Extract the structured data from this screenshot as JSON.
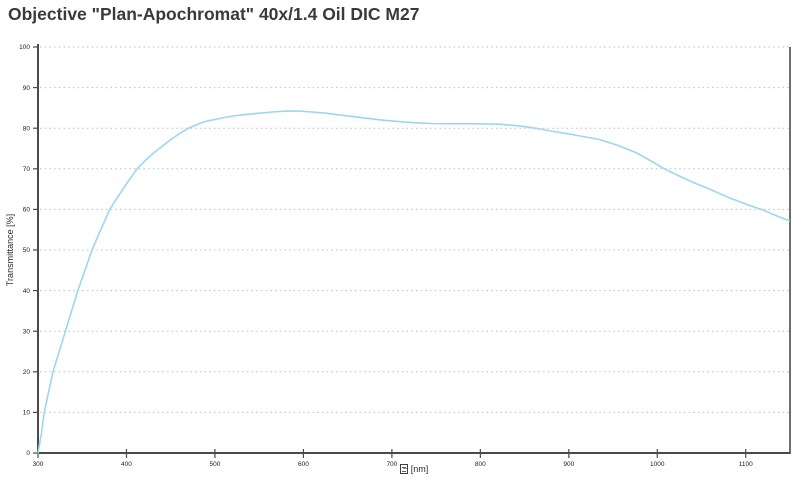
{
  "title": "Objective \"Plan-Apochromat\" 40x/1.4 Oil DIC M27",
  "yaxis": {
    "label": "Transmittance [%]"
  },
  "xaxis": {
    "unit_label": "[nm]",
    "symbol_icon": "missing-glyph-box"
  },
  "colors": {
    "curve": "#9ed5f0",
    "axis": "#4a4a4a",
    "plot_border": "#6e6e6e",
    "gridline": "#bdbdbd",
    "tick_label": "#1c1c1c",
    "title_text": "#3a3a3a"
  },
  "chart_data": {
    "type": "line",
    "title": "Objective \"Plan-Apochromat\" 40x/1.4 Oil DIC M27",
    "xlabel": "□ [nm]",
    "ylabel": "Transmittance [%]",
    "xlim": [
      300,
      1150
    ],
    "ylim": [
      0,
      100
    ],
    "xticks": [
      300,
      400,
      500,
      600,
      700,
      800,
      900,
      1000,
      1100
    ],
    "yticks": [
      0,
      10,
      20,
      30,
      40,
      50,
      60,
      70,
      80,
      90,
      100
    ],
    "grid": "horizontal-dotted",
    "legend": "none",
    "series": [
      {
        "name": "transmittance",
        "x": [
          300,
          304,
          307,
          312,
          317,
          324,
          331,
          338,
          345,
          353,
          361,
          371,
          381,
          390,
          400,
          412,
          422,
          430,
          440,
          450,
          460,
          470,
          480,
          490,
          505,
          520,
          535,
          550,
          565,
          580,
          595,
          610,
          625,
          640,
          655,
          670,
          685,
          700,
          715,
          730,
          745,
          760,
          775,
          790,
          805,
          820,
          835,
          850,
          865,
          880,
          900,
          920,
          935,
          955,
          975,
          990,
          1008,
          1025,
          1040,
          1060,
          1080,
          1100,
          1120,
          1135,
          1149
        ],
        "y": [
          0,
          5,
          10,
          15,
          20,
          25,
          30,
          35,
          40,
          45,
          50,
          55,
          60,
          63,
          66.3,
          70,
          72.2,
          73.8,
          75.5,
          77.2,
          78.7,
          80,
          80.9,
          81.7,
          82.4,
          83,
          83.4,
          83.7,
          84,
          84.2,
          84.2,
          84,
          83.7,
          83.3,
          82.9,
          82.5,
          82.1,
          81.8,
          81.5,
          81.3,
          81.15,
          81.1,
          81.1,
          81.1,
          81.05,
          81,
          80.75,
          80.4,
          79.9,
          79.3,
          78.6,
          77.8,
          77.2,
          75.8,
          74.1,
          72.3,
          70,
          68.2,
          66.7,
          64.9,
          63,
          61.3,
          59.8,
          58.4,
          57.2
        ]
      }
    ]
  }
}
